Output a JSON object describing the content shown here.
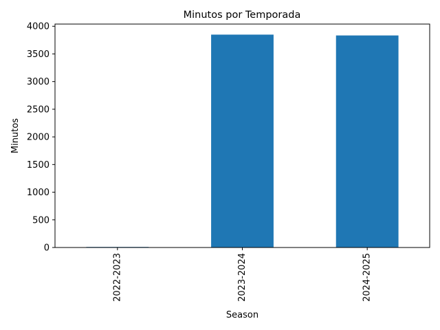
{
  "chart_data": {
    "type": "bar",
    "title": "Minutos por Temporada",
    "xlabel": "Season",
    "ylabel": "Minutos",
    "categories": [
      "2022-2023",
      "2023-2024",
      "2024-2025"
    ],
    "values": [
      10,
      3849,
      3834
    ],
    "ylim": [
      0,
      4040
    ],
    "yticks": [
      "0",
      "500",
      "1000",
      "1500",
      "2000",
      "2500",
      "3000",
      "3500",
      "4000"
    ],
    "grid": false,
    "colors": {
      "bar": "#1f77b4",
      "axis": "#000000",
      "background": "#ffffff"
    }
  }
}
